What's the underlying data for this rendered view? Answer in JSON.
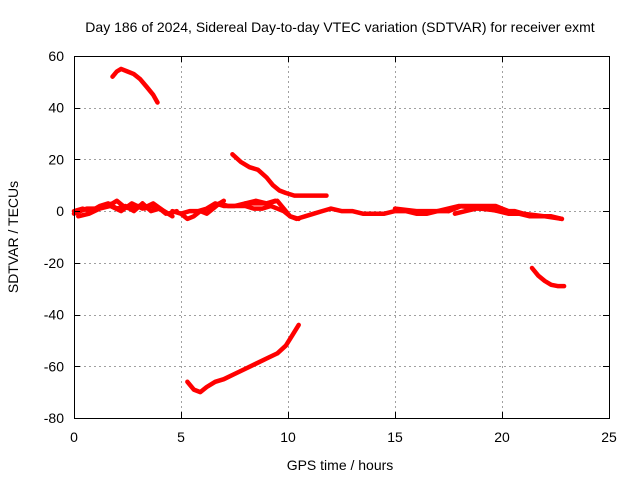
{
  "chart_data": {
    "type": "scatter",
    "title": "Day 186 of 2024, Sidereal Day-to-day VTEC variation (SDTVAR) for receiver exmt",
    "xlabel": "GPS time / hours",
    "ylabel": "SDTVAR / TECUs",
    "xlim": [
      0,
      25
    ],
    "ylim": [
      -80,
      60
    ],
    "xticks": [
      0,
      5,
      10,
      15,
      20,
      25
    ],
    "yticks": [
      -80,
      -60,
      -40,
      -20,
      0,
      20,
      40,
      60
    ],
    "grid": true,
    "color": "#ff0000",
    "series": [
      {
        "name": "arc-top-early",
        "x": [
          1.8,
          2.0,
          2.2,
          2.5,
          2.8,
          3.1,
          3.4,
          3.7,
          3.9
        ],
        "y": [
          52,
          54,
          55,
          54,
          53,
          51,
          48,
          45,
          42
        ]
      },
      {
        "name": "arc-mid-descending",
        "x": [
          7.4,
          7.8,
          8.2,
          8.6,
          9.0,
          9.3,
          9.6,
          9.9,
          10.3,
          10.8,
          11.3,
          11.8
        ],
        "y": [
          22,
          19,
          17,
          16,
          13,
          10,
          8,
          7,
          6,
          6,
          6,
          6
        ]
      },
      {
        "name": "baseline-early-a",
        "x": [
          0.0,
          0.3,
          0.6,
          1.0,
          1.4,
          1.8,
          2.0,
          2.3,
          2.6,
          3.0,
          3.3,
          3.6,
          4.0,
          4.4,
          4.8
        ],
        "y": [
          -1,
          0,
          1,
          1,
          2,
          3,
          4,
          2,
          1,
          2,
          1,
          2,
          1,
          -1,
          0
        ]
      },
      {
        "name": "baseline-early-b",
        "x": [
          0.0,
          0.4,
          0.8,
          1.2,
          1.6,
          2.0,
          2.4,
          2.8,
          3.2,
          3.6,
          4.0,
          4.3
        ],
        "y": [
          0,
          1,
          0,
          2,
          3,
          1,
          2,
          0,
          3,
          0,
          1,
          -1
        ]
      },
      {
        "name": "baseline-early-c",
        "x": [
          0.2,
          0.7,
          1.2,
          1.7,
          2.2,
          2.7,
          3.2,
          3.7,
          4.2,
          4.6
        ],
        "y": [
          -2,
          -1,
          1,
          2,
          0,
          3,
          1,
          3,
          0,
          -2
        ]
      },
      {
        "name": "baseline-morning",
        "x": [
          4.6,
          5.0,
          5.3,
          5.6,
          5.9,
          6.2,
          6.5,
          6.8,
          7.0
        ],
        "y": [
          0,
          -1,
          -3,
          -2,
          0,
          -1,
          1,
          3,
          4
        ]
      },
      {
        "name": "baseline-morning-b",
        "x": [
          5.0,
          5.4,
          5.8,
          6.2,
          6.6,
          7.0,
          7.5,
          8.0,
          8.5,
          9.0,
          9.4
        ],
        "y": [
          -1,
          0,
          0,
          1,
          3,
          2,
          2,
          3,
          3,
          3,
          4
        ]
      },
      {
        "name": "baseline-midday",
        "x": [
          6.8,
          7.2,
          7.6,
          8.0,
          8.4,
          8.8,
          9.2,
          9.5,
          9.8,
          10.1,
          10.4,
          10.8,
          11.2,
          11.6,
          12.0
        ],
        "y": [
          3,
          2,
          2,
          2,
          1,
          1,
          2,
          1,
          0,
          -2,
          -3,
          -2,
          -1,
          0,
          1
        ]
      },
      {
        "name": "baseline-midday-b",
        "x": [
          8.0,
          8.5,
          9.0,
          9.5,
          9.8,
          10.1,
          10.5
        ],
        "y": [
          3,
          4,
          3,
          4,
          1,
          -2,
          -3
        ]
      },
      {
        "name": "baseline-afternoon",
        "x": [
          12.0,
          12.5,
          13.0,
          13.5,
          14.0,
          14.5,
          15.0,
          15.5,
          16.0,
          16.5,
          17.0,
          17.5
        ],
        "y": [
          1,
          0,
          0,
          -1,
          -1,
          -1,
          0,
          0,
          -1,
          -1,
          0,
          0
        ]
      },
      {
        "name": "baseline-evening",
        "x": [
          17.5,
          17.8,
          18.1,
          18.5,
          18.9,
          19.3,
          19.7,
          20.0,
          20.3,
          20.6,
          21.0
        ],
        "y": [
          0,
          1,
          2,
          2,
          2,
          2,
          2,
          1,
          0,
          0,
          -1
        ]
      },
      {
        "name": "baseline-evening-b",
        "x": [
          17.8,
          18.3,
          18.8,
          19.3,
          19.8,
          20.3,
          20.8,
          21.3,
          21.8,
          22.3,
          22.8
        ],
        "y": [
          -1,
          0,
          1,
          1,
          0,
          -1,
          -1,
          -2,
          -2,
          -2,
          -3
        ]
      },
      {
        "name": "baseline-late",
        "x": [
          15.0,
          16.0,
          17.0,
          18.0,
          19.0,
          20.0,
          21.0,
          22.0,
          22.8
        ],
        "y": [
          1,
          0,
          0,
          2,
          1,
          0,
          -1,
          -2,
          -3
        ]
      },
      {
        "name": "arc-low-morning",
        "x": [
          5.3,
          5.6,
          5.9,
          6.2,
          6.6,
          7.0,
          7.5,
          8.0,
          8.5,
          9.0,
          9.5,
          9.9,
          10.2,
          10.5
        ],
        "y": [
          -66,
          -69,
          -70,
          -68,
          -66,
          -65,
          -63,
          -61,
          -59,
          -57,
          -55,
          -52,
          -48,
          -44
        ]
      },
      {
        "name": "arc-late-negative",
        "x": [
          21.4,
          21.7,
          22.0,
          22.3,
          22.6,
          22.9
        ],
        "y": [
          -22,
          -25,
          -27,
          -28.5,
          -29,
          -29
        ]
      }
    ]
  }
}
